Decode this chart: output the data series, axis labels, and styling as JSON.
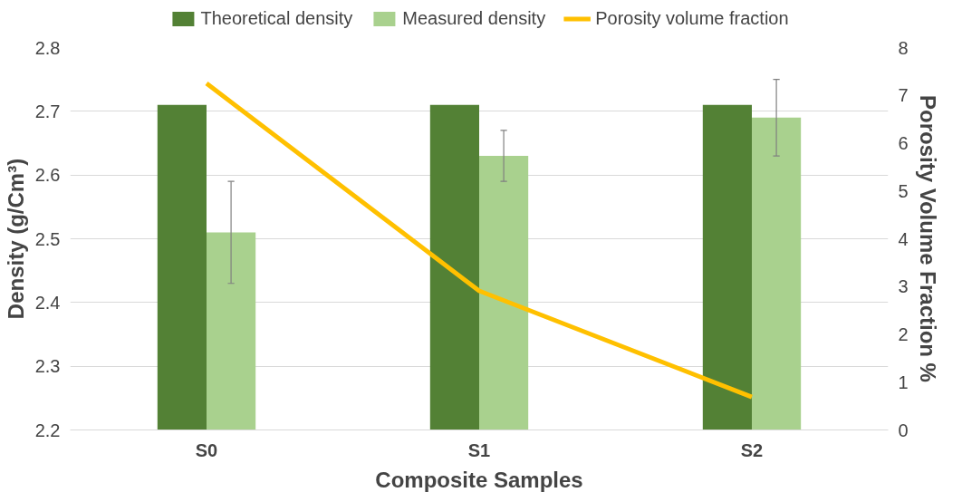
{
  "chart_data": {
    "type": "bar",
    "xlabel": "Composite Samples",
    "ylabel": "Density (g/Cm³)",
    "y2label": "Porosity Volume Fraction %",
    "categories": [
      "S0",
      "S1",
      "S2"
    ],
    "series": [
      {
        "name": "Theoretical density",
        "color": "#538135",
        "values": [
          2.71,
          2.71,
          2.71
        ]
      },
      {
        "name": "Measured density",
        "color": "#a9d18e",
        "values": [
          2.51,
          2.63,
          2.69
        ],
        "errors": [
          0.08,
          0.04,
          0.06
        ]
      },
      {
        "name": "Porosity volume fraction",
        "type": "line",
        "axis": "y2",
        "color": "#ffc000",
        "values": [
          7.25,
          2.91,
          0.69
        ]
      }
    ],
    "ylim": [
      2.2,
      2.8
    ],
    "yticks": [
      2.2,
      2.3,
      2.4,
      2.5,
      2.6,
      2.7,
      2.8
    ],
    "y2lim": [
      0,
      8
    ],
    "y2ticks": [
      0,
      1,
      2,
      3,
      4,
      5,
      6,
      7,
      8
    ],
    "grid": "y",
    "legend": "top",
    "marker": "none",
    "line_style": "solid"
  }
}
